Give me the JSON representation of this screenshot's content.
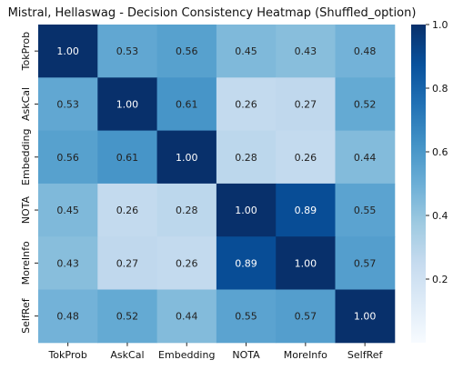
{
  "chart_data": {
    "type": "heatmap",
    "title": "Mistral, Hellaswag - Decision Consistency Heatmap (Shuffled_option)",
    "x_categories": [
      "TokProb",
      "AskCal",
      "Embedding",
      "NOTA",
      "MoreInfo",
      "SelfRef"
    ],
    "y_categories": [
      "TokProb",
      "AskCal",
      "Embedding",
      "NOTA",
      "MoreInfo",
      "SelfRef"
    ],
    "values": [
      [
        1.0,
        0.53,
        0.56,
        0.45,
        0.43,
        0.48
      ],
      [
        0.53,
        1.0,
        0.61,
        0.26,
        0.27,
        0.52
      ],
      [
        0.56,
        0.61,
        1.0,
        0.28,
        0.26,
        0.44
      ],
      [
        0.45,
        0.26,
        0.28,
        1.0,
        0.89,
        0.55
      ],
      [
        0.43,
        0.27,
        0.26,
        0.89,
        1.0,
        0.57
      ],
      [
        0.48,
        0.52,
        0.44,
        0.55,
        0.57,
        1.0
      ]
    ],
    "value_labels": [
      [
        "1.00",
        "0.53",
        "0.56",
        "0.45",
        "0.43",
        "0.48"
      ],
      [
        "0.53",
        "1.00",
        "0.61",
        "0.26",
        "0.27",
        "0.52"
      ],
      [
        "0.56",
        "0.61",
        "1.00",
        "0.28",
        "0.26",
        "0.44"
      ],
      [
        "0.45",
        "0.26",
        "0.28",
        "1.00",
        "0.89",
        "0.55"
      ],
      [
        "0.43",
        "0.27",
        "0.26",
        "0.89",
        "1.00",
        "0.57"
      ],
      [
        "0.48",
        "0.52",
        "0.44",
        "0.55",
        "0.57",
        "1.00"
      ]
    ],
    "colormap": "Blues",
    "vmin": 0.0,
    "vmax": 1.0,
    "colorbar_ticks": [
      0.2,
      0.4,
      0.6,
      0.8,
      1.0
    ],
    "colorbar_tick_labels": [
      "0.2",
      "0.4",
      "0.6",
      "0.8",
      "1.0"
    ],
    "legend": "colorbar-right",
    "grid": false
  }
}
